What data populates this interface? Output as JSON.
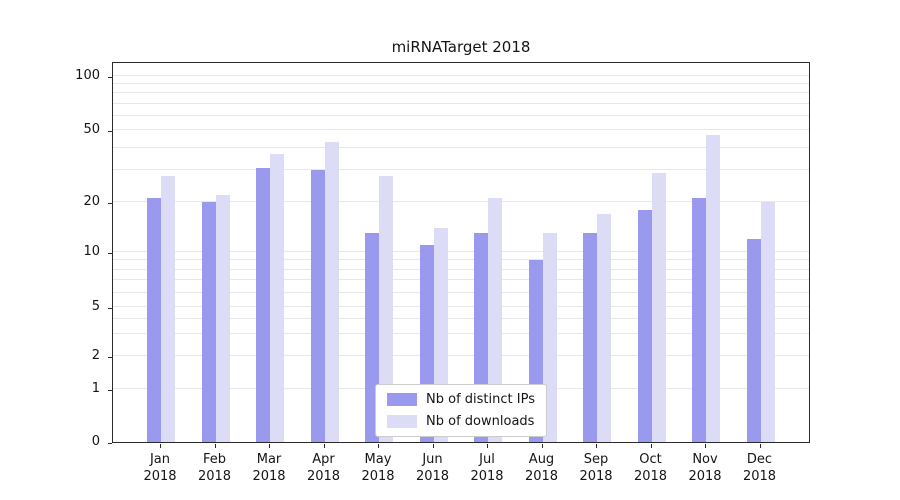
{
  "chart_data": {
    "type": "bar",
    "title": "miRNATarget 2018",
    "year_label": "2018",
    "categories": [
      "Jan",
      "Feb",
      "Mar",
      "Apr",
      "May",
      "Jun",
      "Jul",
      "Aug",
      "Sep",
      "Oct",
      "Nov",
      "Dec"
    ],
    "series": [
      {
        "name": "Nb of distinct IPs",
        "color": "#9999ed",
        "values": [
          21,
          20,
          31,
          30,
          13,
          11,
          13,
          9,
          13,
          18,
          21,
          12
        ]
      },
      {
        "name": "Nb of downloads",
        "color": "#dcdcf7",
        "values": [
          28,
          22,
          37,
          43,
          28,
          14,
          21,
          13,
          17,
          29,
          47,
          20
        ]
      }
    ],
    "yticks": [
      0,
      1,
      2,
      5,
      10,
      20,
      50,
      100
    ],
    "grid_values": [
      1,
      2,
      3,
      4,
      5,
      6,
      7,
      8,
      9,
      10,
      20,
      30,
      40,
      50,
      60,
      70,
      80,
      90,
      100
    ],
    "yscale": "symlog",
    "ylim": [
      0,
      120
    ],
    "grid": "on",
    "legend_position": "lower center"
  }
}
